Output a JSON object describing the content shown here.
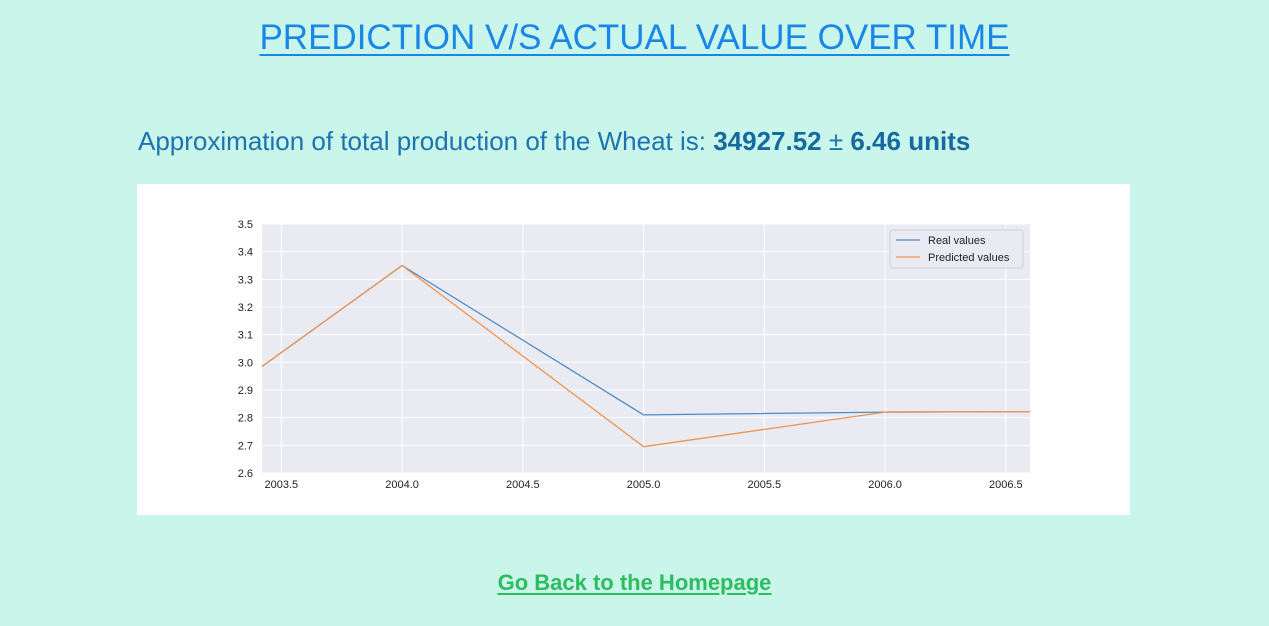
{
  "page": {
    "title": "PREDICTION V/S ACTUAL VALUE OVER TIME",
    "estimate_prefix": "Approximation of total production of the Wheat is: ",
    "estimate_value": "34927.52",
    "estimate_pm": " ± ",
    "estimate_error": "6.46 units",
    "back_link": "Go Back to the Homepage"
  },
  "colors": {
    "background": "#c9f5ea",
    "title": "#1a86e8",
    "estimate_text": "#1b74b0",
    "link": "#2ebd5e",
    "plot_background": "#eaeaf2",
    "grid": "#ffffff",
    "real_series": "#4c8dc6",
    "predicted_series": "#f0934a"
  },
  "chart_data": {
    "type": "line",
    "title": "",
    "xlabel": "",
    "ylabel": "",
    "xlim": [
      2003.42,
      2006.6
    ],
    "ylim": [
      2.6,
      3.5
    ],
    "xticks": [
      2003.5,
      2004.0,
      2004.5,
      2005.0,
      2005.5,
      2006.0,
      2006.5
    ],
    "xtick_labels": [
      "2003.5",
      "2004.0",
      "2004.5",
      "2005.0",
      "2005.5",
      "2006.0",
      "2006.5"
    ],
    "yticks": [
      2.6,
      2.7,
      2.8,
      2.9,
      3.0,
      3.1,
      3.2,
      3.3,
      3.4,
      3.5
    ],
    "ytick_labels": [
      "2.6",
      "2.7",
      "2.8",
      "2.9",
      "3.0",
      "3.1",
      "3.2",
      "3.3",
      "3.4",
      "3.5"
    ],
    "grid": true,
    "legend_position": "top-right",
    "series": [
      {
        "name": "Real values",
        "color": "#4c8dc6",
        "x": [
          2003.42,
          2004.0,
          2005.0,
          2006.0,
          2006.6
        ],
        "y": [
          2.985,
          3.35,
          2.81,
          2.82,
          2.822
        ]
      },
      {
        "name": "Predicted values",
        "color": "#f0934a",
        "x": [
          2003.42,
          2004.0,
          2005.0,
          2006.0,
          2006.6
        ],
        "y": [
          2.985,
          3.35,
          2.695,
          2.82,
          2.822
        ]
      }
    ]
  }
}
